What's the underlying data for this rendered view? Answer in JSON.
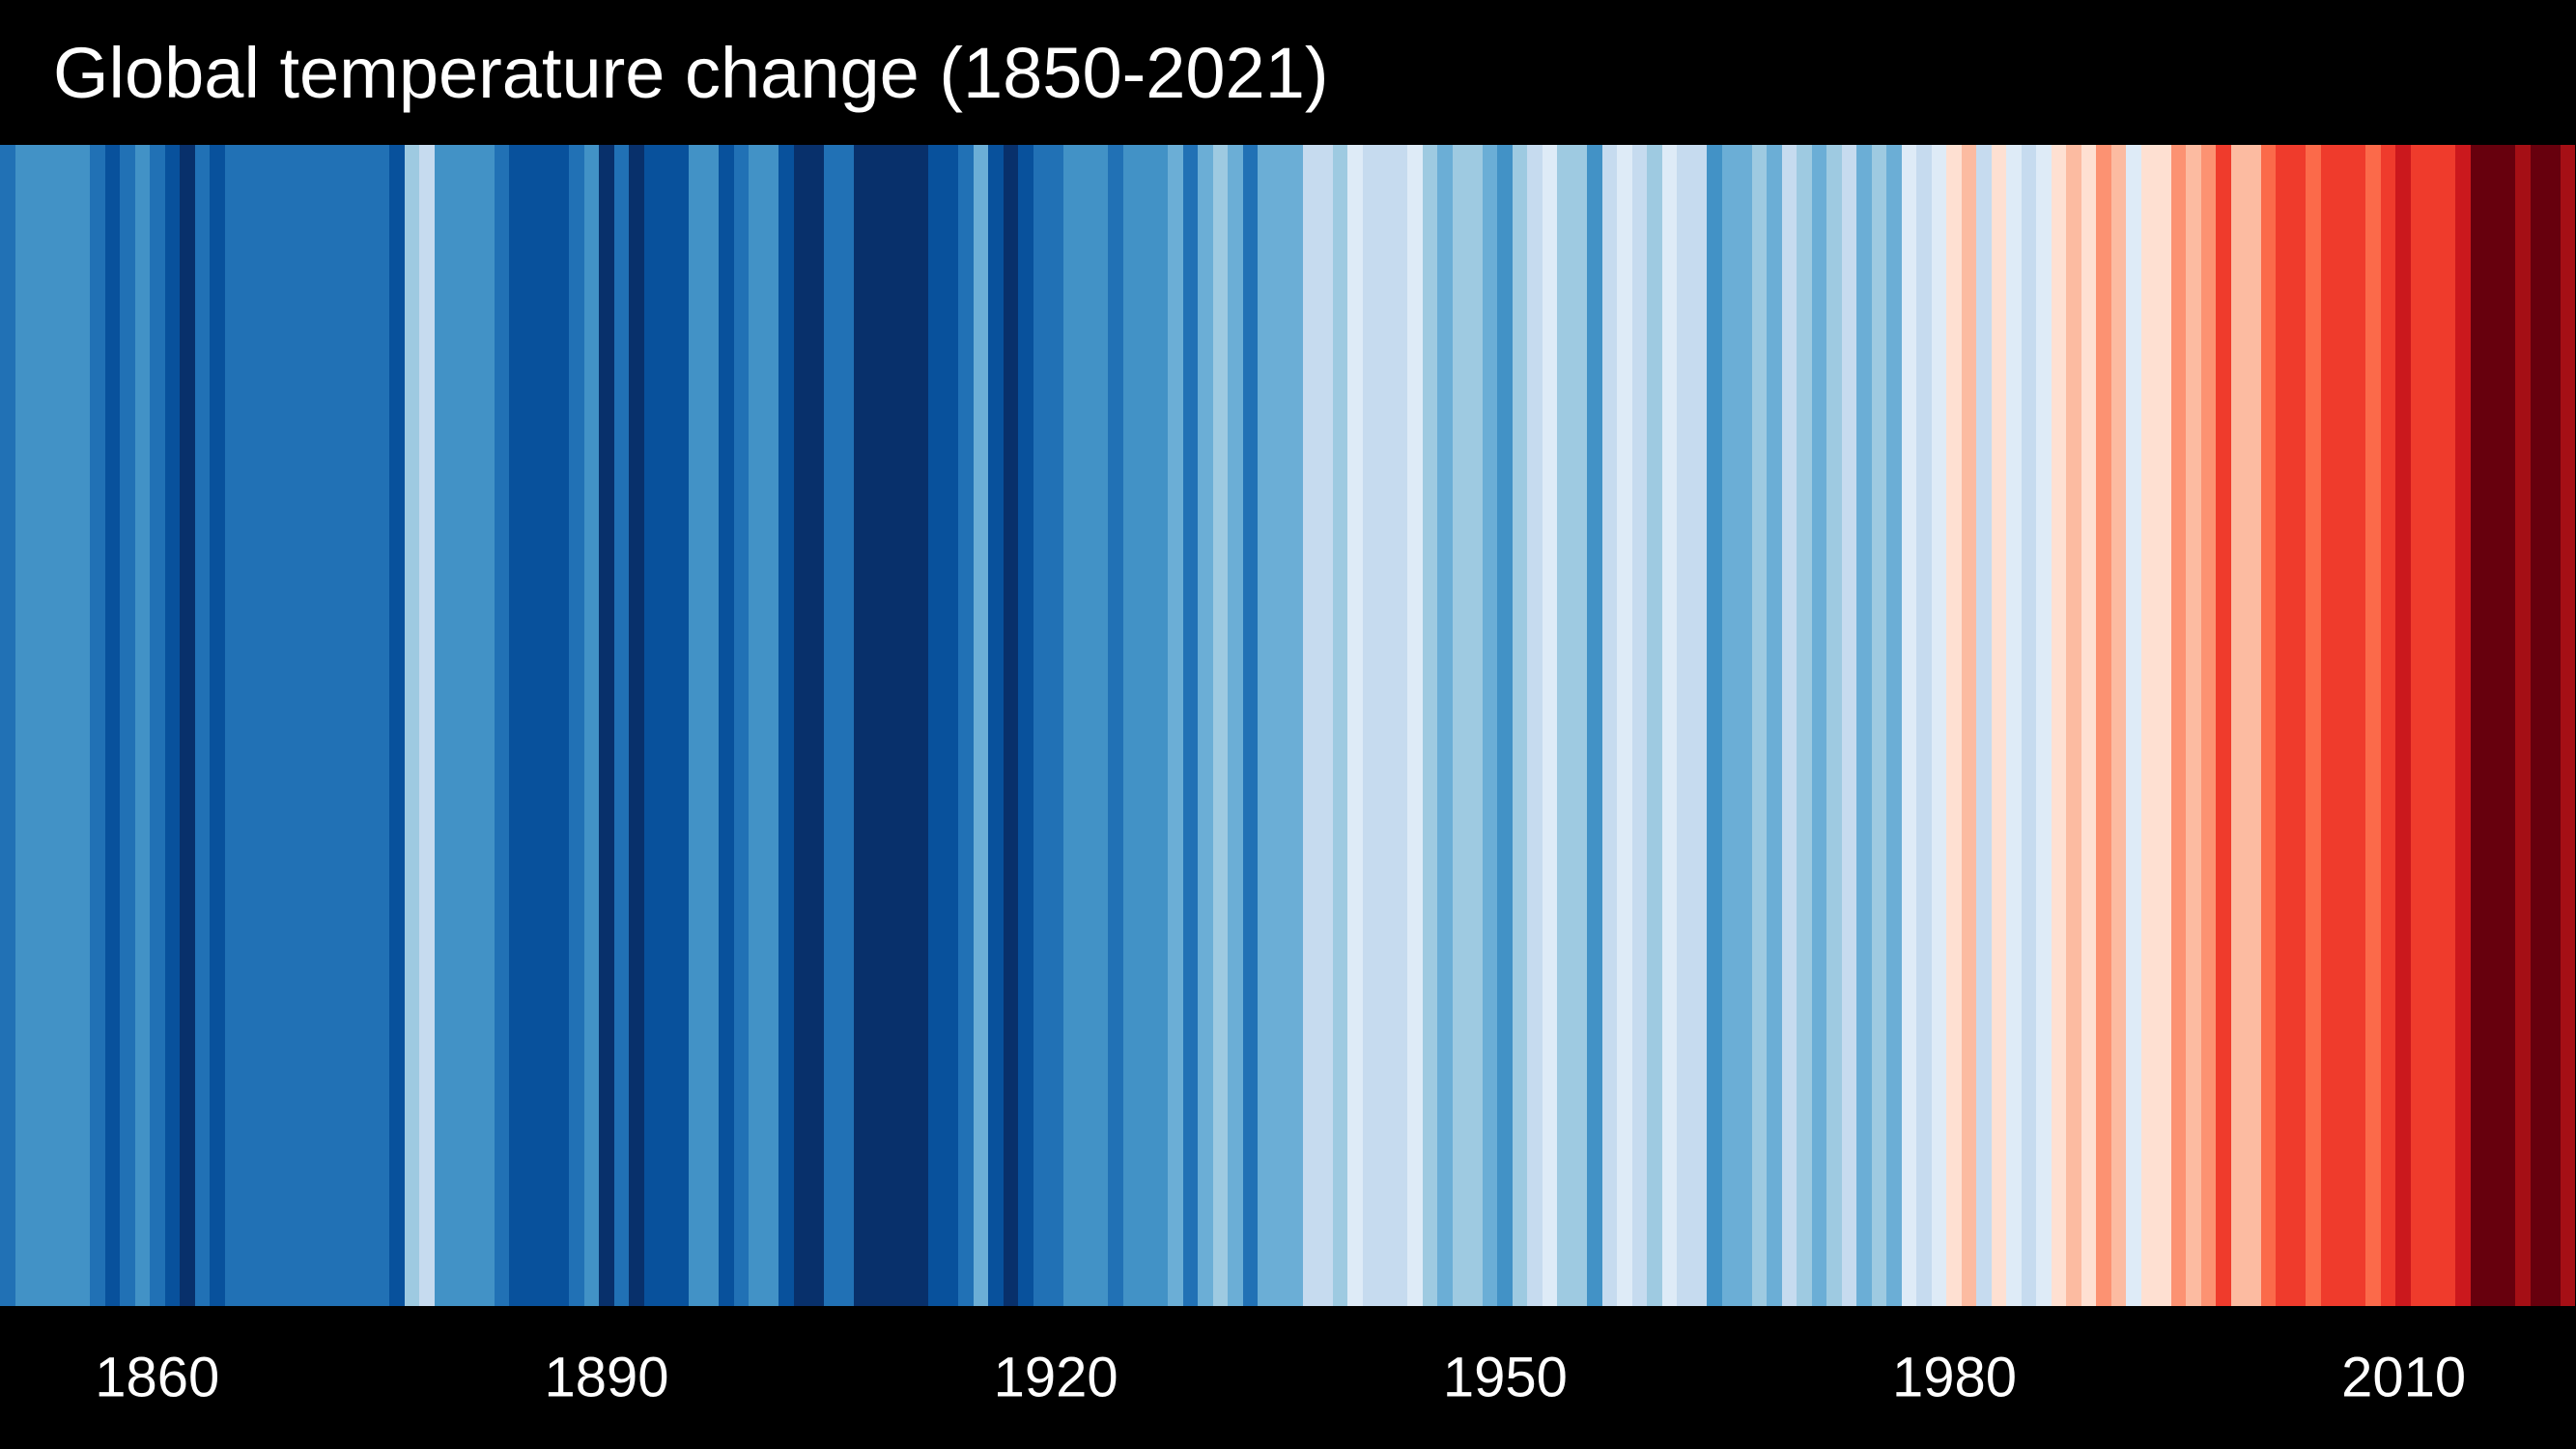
{
  "title": "Global temperature change (1850-2021)",
  "colors": {
    "background": "#000000",
    "title_text": "#ffffff",
    "axis_text": "#ffffff"
  },
  "chart_data": {
    "type": "heatmap",
    "subtype": "warming-stripes",
    "title": "Global temperature change (1850-2021)",
    "xlabel": "",
    "ylabel": "",
    "legend": "none",
    "grid": false,
    "year_start": 1850,
    "year_end": 2021,
    "x_ticks": [
      1860,
      1890,
      1920,
      1950,
      1980,
      2010
    ],
    "x_tick_labels": [
      "1860",
      "1890",
      "1920",
      "1950",
      "1980",
      "2010"
    ],
    "palette_blues_cold_to_mild": [
      "#08306b",
      "#08519c",
      "#2171b5",
      "#4292c6",
      "#6baed6",
      "#9ecae1",
      "#c6dbef",
      "#deebf7"
    ],
    "palette_reds_mild_to_hot": [
      "#fee0d2",
      "#fcbba1",
      "#fc9272",
      "#fb6a4a",
      "#ef3b2c",
      "#cb181d",
      "#a50f15",
      "#67000d"
    ],
    "stripe_colors": [
      "#2171b5",
      "#4292c6",
      "#4292c6",
      "#4292c6",
      "#4292c6",
      "#4292c6",
      "#2171b5",
      "#08519c",
      "#2171b5",
      "#4292c6",
      "#2171b5",
      "#08519c",
      "#08306b",
      "#2171b5",
      "#08519c",
      "#2171b5",
      "#2171b5",
      "#2171b5",
      "#2171b5",
      "#2171b5",
      "#2171b5",
      "#2171b5",
      "#2171b5",
      "#2171b5",
      "#2171b5",
      "#2171b5",
      "#08519c",
      "#9ecae1",
      "#c6dbef",
      "#4292c6",
      "#4292c6",
      "#4292c6",
      "#4292c6",
      "#2171b5",
      "#08519c",
      "#08519c",
      "#08519c",
      "#08519c",
      "#2171b5",
      "#4292c6",
      "#08306b",
      "#2171b5",
      "#08306b",
      "#08519c",
      "#08519c",
      "#08519c",
      "#4292c6",
      "#4292c6",
      "#08519c",
      "#2171b5",
      "#4292c6",
      "#4292c6",
      "#08519c",
      "#08306b",
      "#08306b",
      "#2171b5",
      "#2171b5",
      "#08306b",
      "#08306b",
      "#08306b",
      "#08306b",
      "#08306b",
      "#08519c",
      "#08519c",
      "#2171b5",
      "#6baed6",
      "#08519c",
      "#08306b",
      "#08519c",
      "#2171b5",
      "#2171b5",
      "#4292c6",
      "#4292c6",
      "#4292c6",
      "#2171b5",
      "#4292c6",
      "#4292c6",
      "#4292c6",
      "#6baed6",
      "#2171b5",
      "#6baed6",
      "#9ecae1",
      "#6baed6",
      "#2171b5",
      "#6baed6",
      "#6baed6",
      "#6baed6",
      "#c6dbef",
      "#c6dbef",
      "#9ecae1",
      "#deebf7",
      "#c6dbef",
      "#c6dbef",
      "#c6dbef",
      "#deebf7",
      "#9ecae1",
      "#6baed6",
      "#9ecae1",
      "#9ecae1",
      "#6baed6",
      "#4292c6",
      "#9ecae1",
      "#c6dbef",
      "#deebf7",
      "#9ecae1",
      "#9ecae1",
      "#4292c6",
      "#c6dbef",
      "#deebf7",
      "#c6dbef",
      "#9ecae1",
      "#deebf7",
      "#c6dbef",
      "#c6dbef",
      "#4292c6",
      "#6baed6",
      "#6baed6",
      "#9ecae1",
      "#6baed6",
      "#c6dbef",
      "#9ecae1",
      "#6baed6",
      "#9ecae1",
      "#c6dbef",
      "#6baed6",
      "#9ecae1",
      "#6baed6",
      "#deebf7",
      "#c6dbef",
      "#deebf7",
      "#fee0d2",
      "#fcbba1",
      "#c6dbef",
      "#fee0d2",
      "#deebf7",
      "#c6dbef",
      "#deebf7",
      "#fee0d2",
      "#fcbba1",
      "#fee0d2",
      "#fc9272",
      "#fcbba1",
      "#deebf7",
      "#fee0d2",
      "#fee0d2",
      "#fc9272",
      "#fcbba1",
      "#fc9272",
      "#ef3b2c",
      "#fcbba1",
      "#fcbba1",
      "#fb6a4a",
      "#ef3b2c",
      "#ef3b2c",
      "#fb6a4a",
      "#ef3b2c",
      "#ef3b2c",
      "#ef3b2c",
      "#fb6a4a",
      "#ef3b2c",
      "#cb181d",
      "#ef3b2c",
      "#ef3b2c",
      "#ef3b2c",
      "#cb181d",
      "#67000d",
      "#67000d",
      "#67000d",
      "#a50f15",
      "#67000d",
      "#67000d",
      "#a50f15"
    ]
  }
}
